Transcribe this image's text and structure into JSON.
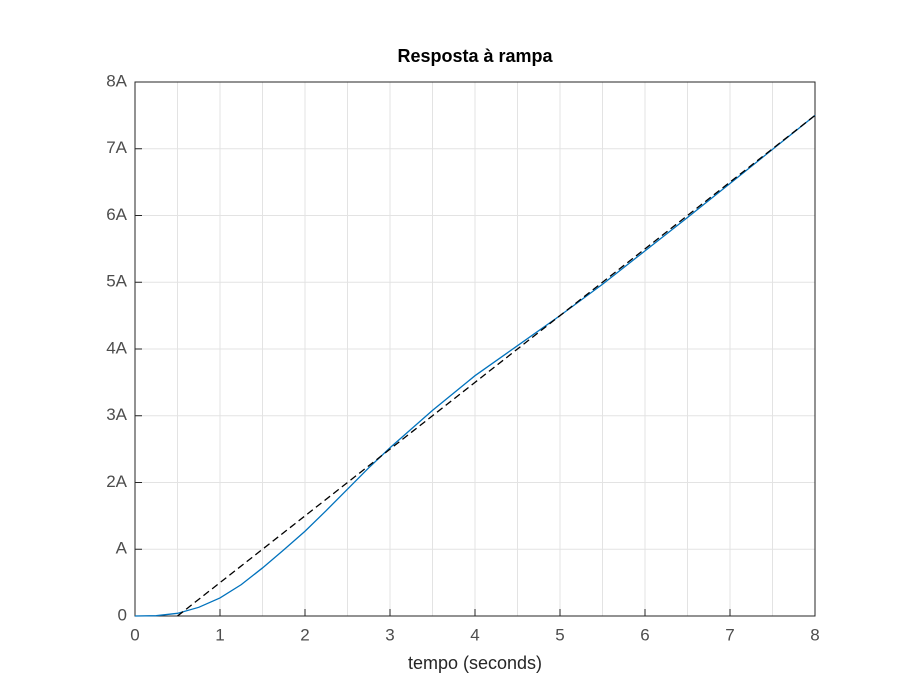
{
  "chart_data": {
    "type": "line",
    "title": "Resposta à rampa",
    "x_label": "tempo (seconds)",
    "xlim": [
      0,
      8
    ],
    "xticks": [
      0,
      1,
      2,
      3,
      4,
      5,
      6,
      7,
      8
    ],
    "x_minor_grid": [
      0.5,
      1.5,
      2.5,
      3.5,
      4.5,
      5.5,
      6.5,
      7.5
    ],
    "ylim": [
      0,
      8
    ],
    "yticks": [
      0,
      {
        "value": 1,
        "label": "A"
      },
      {
        "value": 2,
        "label": "2A"
      },
      {
        "value": 3,
        "label": "3A"
      },
      {
        "value": 4,
        "label": "4A"
      },
      {
        "value": 5,
        "label": "5A"
      },
      {
        "value": 6,
        "label": "6A"
      },
      {
        "value": 7,
        "label": "7A"
      },
      {
        "value": 8,
        "label": "8A"
      }
    ],
    "grid": true,
    "series": [
      {
        "color": "#0072bd",
        "dashed": false,
        "x": [
          0,
          0.25,
          0.5,
          0.75,
          1,
          1.25,
          1.5,
          1.75,
          2,
          2.25,
          2.5,
          2.75,
          3,
          3.5,
          4,
          4.5,
          5,
          5.5,
          6,
          6.5,
          7,
          7.5,
          8
        ],
        "values": [
          0,
          0.005,
          0.04,
          0.13,
          0.27,
          0.47,
          0.72,
          0.99,
          1.27,
          1.58,
          1.9,
          2.22,
          2.52,
          3.08,
          3.6,
          4.05,
          4.5,
          4.97,
          5.47,
          5.97,
          6.48,
          6.99,
          7.5
        ]
      },
      {
        "color": "#000000",
        "dashed": true,
        "x": [
          0.5,
          8
        ],
        "values": [
          0,
          7.5
        ]
      }
    ]
  }
}
